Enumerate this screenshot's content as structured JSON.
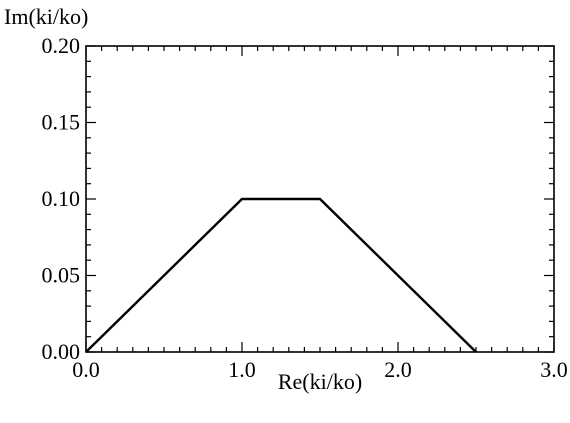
{
  "chart_data": {
    "type": "line",
    "title": "",
    "xlabel": "Re(ki/ko)",
    "ylabel": "Im(ki/ko)",
    "xlim": [
      0.0,
      3.0
    ],
    "ylim": [
      0.0,
      0.2
    ],
    "x_ticks": [
      0.0,
      1.0,
      2.0,
      3.0
    ],
    "x_tick_labels": [
      "0.0",
      "1.0",
      "2.0",
      "3.0"
    ],
    "y_ticks": [
      0.0,
      0.05,
      0.1,
      0.15,
      0.2
    ],
    "y_tick_labels": [
      "0.00",
      "0.05",
      "0.10",
      "0.15",
      "0.20"
    ],
    "x_minor_step": 0.1,
    "y_minor_step": 0.01,
    "grid": false,
    "legend": "none",
    "series": [
      {
        "x": [
          0.0,
          1.0,
          1.5,
          2.5
        ],
        "y": [
          0.0,
          0.1,
          0.1,
          0.0
        ]
      }
    ]
  }
}
